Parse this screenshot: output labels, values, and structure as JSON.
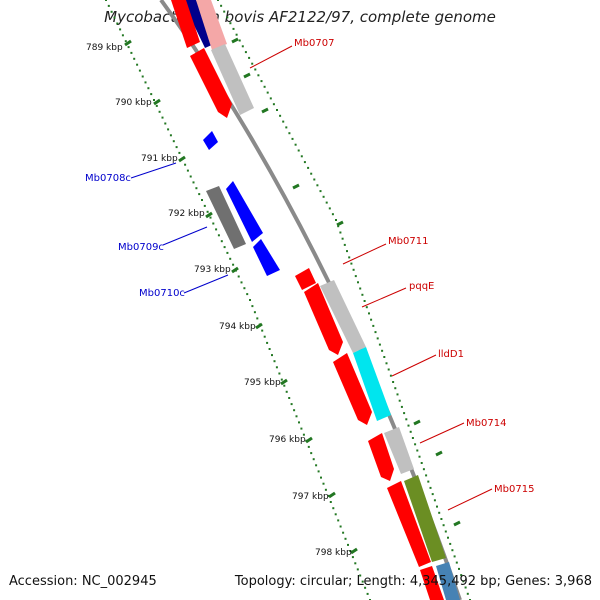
{
  "header": {
    "title": "Mycobacterium bovis AF2122/97, complete genome"
  },
  "footer": {
    "accession": "Accession: NC_002945",
    "topology": "Topology: circular; Length: 4,345,492 bp; Genes: 3,968"
  },
  "scale": {
    "ticks": [
      {
        "kbp": 789,
        "label": "789 kbp"
      },
      {
        "kbp": 790,
        "label": "790 kbp"
      },
      {
        "kbp": 791,
        "label": "791 kbp"
      },
      {
        "kbp": 792,
        "label": "792 kbp"
      },
      {
        "kbp": 793,
        "label": "793 kbp"
      },
      {
        "kbp": 794,
        "label": "794 kbp"
      },
      {
        "kbp": 795,
        "label": "795 kbp"
      },
      {
        "kbp": 796,
        "label": "796 kbp"
      },
      {
        "kbp": 797,
        "label": "797 kbp"
      },
      {
        "kbp": 798,
        "label": "798 kbp"
      }
    ]
  },
  "genes": {
    "forward": [
      {
        "label": "Mb0707",
        "color": "#cc0000"
      },
      {
        "label": "Mb0711",
        "color": "#cc0000"
      },
      {
        "label": "pqqE",
        "color": "#cc0000"
      },
      {
        "label": "lldD1",
        "color": "#cc0000"
      },
      {
        "label": "Mb0714",
        "color": "#cc0000"
      },
      {
        "label": "Mb0715",
        "color": "#cc0000"
      }
    ],
    "reverse": [
      {
        "label": "Mb0708c",
        "color": "#0000cc"
      },
      {
        "label": "Mb0709c",
        "color": "#0000cc"
      },
      {
        "label": "Mb0710c",
        "color": "#0000cc"
      }
    ]
  },
  "colors": {
    "backbone": "#8a8a8a",
    "forward_cds": "#ff0000",
    "reverse_cds": "#0000ff",
    "tick": "#227722",
    "cog_grey": "#c0c0c0",
    "cog_dark_grey": "#707070",
    "cog_cyan": "#00e5ee",
    "cog_olive": "#6b8e23",
    "cog_steelblue": "#4682b4"
  }
}
